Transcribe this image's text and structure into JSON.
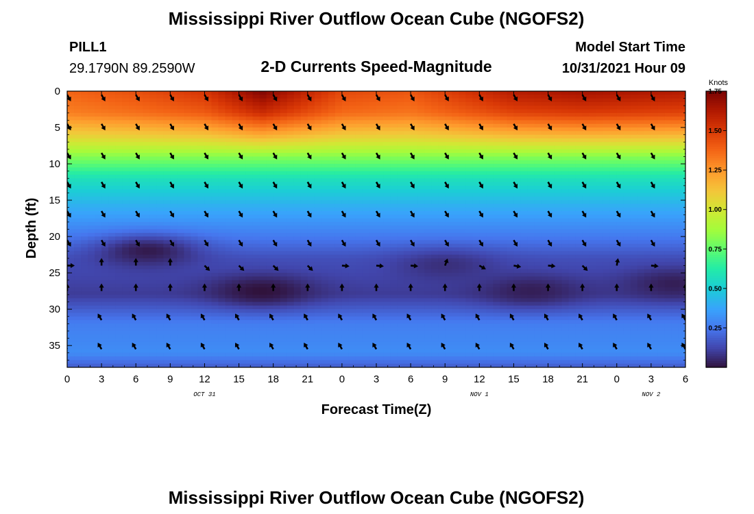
{
  "titles": {
    "main": "Mississippi River Outflow Ocean Cube (NGOFS2)",
    "station": "PILL1",
    "coords": "29.1790N  89.2590W",
    "subtitle": "2-D Currents Speed-Magnitude",
    "model_label": "Model Start Time",
    "model_time": "10/31/2021 Hour 09",
    "bottom_repeat": "Mississippi River Outflow Ocean Cube (NGOFS2)"
  },
  "chart_data": {
    "type": "heatmap",
    "xlabel": "Forecast Time(Z)",
    "ylabel": "Depth (ft)",
    "x_tick_labels": [
      "0",
      "3",
      "6",
      "9",
      "12",
      "15",
      "18",
      "21",
      "0",
      "3",
      "6",
      "9",
      "12",
      "15",
      "18",
      "21",
      "0",
      "3",
      "6"
    ],
    "date_labels": [
      {
        "text": "OCT 31",
        "tick_index": 4
      },
      {
        "text": "NOV 1",
        "tick_index": 12
      },
      {
        "text": "NOV 2",
        "tick_index": 17
      }
    ],
    "xlim": [
      0,
      54
    ],
    "y_ticks": [
      0,
      5,
      10,
      15,
      20,
      25,
      30,
      35
    ],
    "ylim": [
      38,
      0
    ],
    "colorbar": {
      "unit": "Knots",
      "ticks": [
        "1.75",
        "1.50",
        "1.25",
        "1.00",
        "0.75",
        "0.50",
        "0.25"
      ],
      "tick_values": [
        1.75,
        1.5,
        1.25,
        1.0,
        0.75,
        0.5,
        0.25
      ],
      "range": [
        0,
        1.75
      ],
      "colormap": "turbo-like"
    },
    "speed_profile": {
      "depth_ft": [
        0,
        3,
        6,
        9,
        12,
        16,
        20,
        23,
        25,
        28,
        32,
        36,
        38
      ],
      "speed_kn": [
        1.47,
        1.37,
        1.12,
        0.82,
        0.58,
        0.4,
        0.26,
        0.15,
        0.13,
        0.1,
        0.27,
        0.31,
        0.18
      ]
    },
    "surface_speed_kn": [
      {
        "hour": 0,
        "speed": 1.38
      },
      {
        "hour": 6,
        "speed": 1.44
      },
      {
        "hour": 12,
        "speed": 1.52
      },
      {
        "hour": 17,
        "speed": 1.74
      },
      {
        "hour": 24,
        "speed": 1.46
      },
      {
        "hour": 30,
        "speed": 1.42
      },
      {
        "hour": 39,
        "speed": 1.62
      },
      {
        "hour": 45,
        "speed": 1.66
      },
      {
        "hour": 54,
        "speed": 1.62
      }
    ],
    "slow_patches": [
      {
        "hour": 7,
        "depth_ft": 22,
        "speed_kn": 0.02
      },
      {
        "hour": 17,
        "depth_ft": 27.5,
        "speed_kn": 0.0
      },
      {
        "hour": 40.5,
        "depth_ft": 27.5,
        "speed_kn": 0.03
      },
      {
        "hour": 53,
        "depth_ft": 26.5,
        "speed_kn": 0.03
      },
      {
        "hour": 33,
        "depth_ft": 24,
        "speed_kn": 0.07
      }
    ],
    "arrow_depths_ft": [
      0.5,
      4.5,
      8.5,
      12.5,
      16.5,
      20.5,
      24,
      27.5,
      31.5,
      35.5
    ],
    "arrow_hours": [
      0,
      3,
      6,
      9,
      12,
      15,
      18,
      21,
      24,
      27,
      30,
      33,
      36,
      39,
      42,
      45,
      48,
      51,
      54
    ],
    "arrow_direction_deg_by_depth": [
      150,
      150,
      150,
      150,
      150,
      150,
      120,
      0,
      330,
      330
    ],
    "arrow_direction_overrides": [
      {
        "depth_ft": 24,
        "hours": [
          0
        ],
        "deg": 90
      },
      {
        "depth_ft": 24,
        "hours": [
          24,
          27,
          30,
          42,
          51,
          54
        ],
        "deg": 95
      },
      {
        "depth_ft": 24,
        "hours": [
          33
        ],
        "deg": 20
      },
      {
        "depth_ft": 24,
        "hours": [
          48
        ],
        "deg": 10
      },
      {
        "depth_ft": 24,
        "hours": [
          12,
          15,
          18,
          21,
          45
        ],
        "deg": 135
      },
      {
        "depth_ft": 24,
        "hours": [
          3,
          6,
          9
        ],
        "deg": 0
      },
      {
        "depth_ft": 24,
        "hours": [
          39
        ],
        "deg": 100
      }
    ]
  }
}
